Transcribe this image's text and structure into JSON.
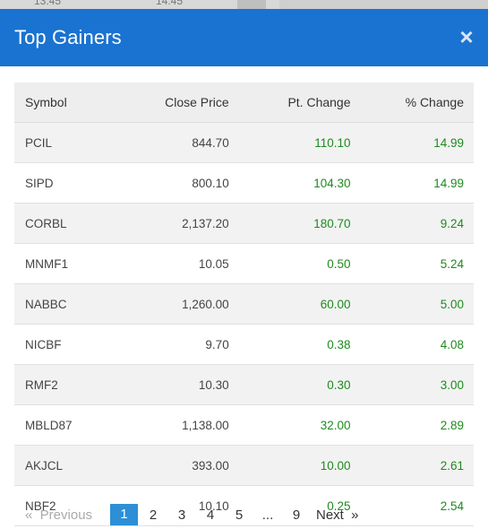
{
  "background": {
    "times": [
      "13:45",
      "14:45"
    ]
  },
  "modal": {
    "title": "Top Gainers",
    "close_symbol": "×"
  },
  "table": {
    "headers": [
      "Symbol",
      "Close Price",
      "Pt. Change",
      "% Change"
    ],
    "rows": [
      {
        "symbol": "PCIL",
        "close": "844.70",
        "pt": "110.10",
        "pct": "14.99"
      },
      {
        "symbol": "SIPD",
        "close": "800.10",
        "pt": "104.30",
        "pct": "14.99"
      },
      {
        "symbol": "CORBL",
        "close": "2,137.20",
        "pt": "180.70",
        "pct": "9.24"
      },
      {
        "symbol": "MNMF1",
        "close": "10.05",
        "pt": "0.50",
        "pct": "5.24"
      },
      {
        "symbol": "NABBC",
        "close": "1,260.00",
        "pt": "60.00",
        "pct": "5.00"
      },
      {
        "symbol": "NICBF",
        "close": "9.70",
        "pt": "0.38",
        "pct": "4.08"
      },
      {
        "symbol": "RMF2",
        "close": "10.30",
        "pt": "0.30",
        "pct": "3.00"
      },
      {
        "symbol": "MBLD87",
        "close": "1,138.00",
        "pt": "32.00",
        "pct": "2.89"
      },
      {
        "symbol": "AKJCL",
        "close": "393.00",
        "pt": "10.00",
        "pct": "2.61"
      },
      {
        "symbol": "NBF2",
        "close": "10.10",
        "pt": "0.25",
        "pct": "2.54"
      }
    ]
  },
  "pagination": {
    "previous": "«  Previous",
    "pages": [
      "1",
      "2",
      "3",
      "4",
      "5"
    ],
    "ellipsis": "...",
    "last_page": "9",
    "next": "Next  »",
    "active_page": "1"
  },
  "colors": {
    "header_blue": "#1a73d1",
    "positive_green": "#1e8a1e",
    "active_page": "#2d8fd6"
  }
}
